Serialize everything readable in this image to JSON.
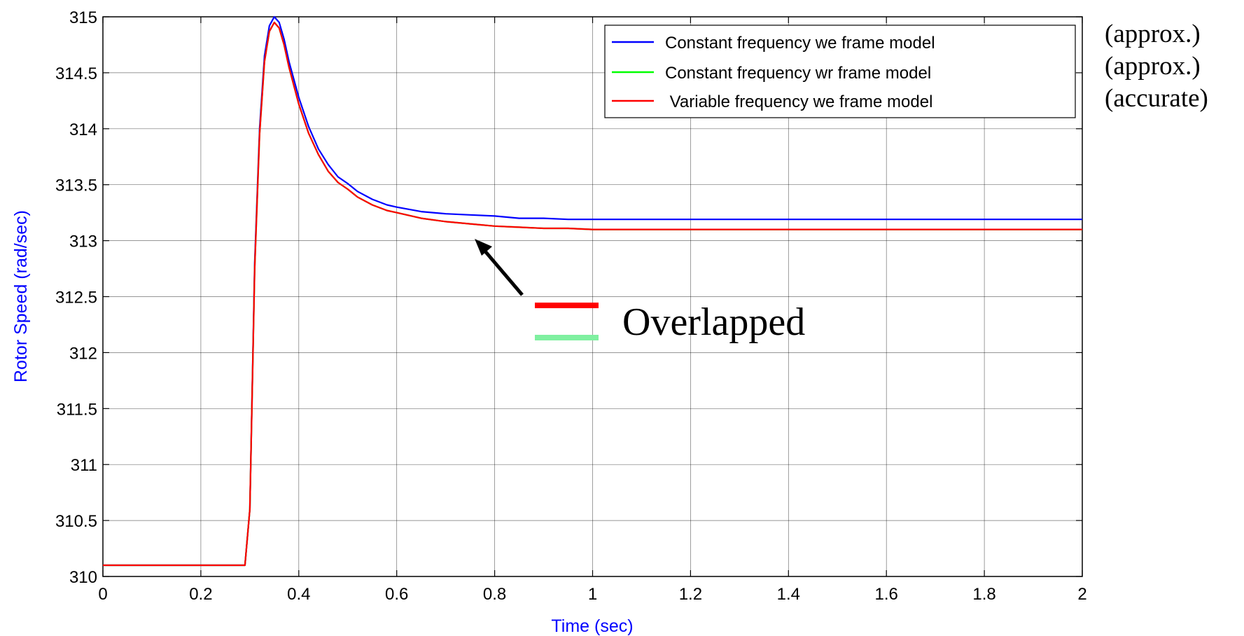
{
  "chart_data": {
    "type": "line",
    "title": "",
    "xlabel": "Time (sec)",
    "ylabel": "Rotor Speed (rad/sec)",
    "xlim": [
      0,
      2
    ],
    "ylim": [
      310,
      315
    ],
    "xticks": [
      0,
      0.2,
      0.4,
      0.6,
      0.8,
      1,
      1.2,
      1.4,
      1.6,
      1.8,
      2
    ],
    "xtick_labels": [
      "0",
      "0.2",
      "0.4",
      "0.6",
      "0.8",
      "1",
      "1.2",
      "1.4",
      "1.6",
      "1.8",
      "2"
    ],
    "yticks": [
      310,
      310.5,
      311,
      311.5,
      312,
      312.5,
      313,
      313.5,
      314,
      314.5,
      315
    ],
    "ytick_labels": [
      "310",
      "310.5",
      "311",
      "311.5",
      "312",
      "312.5",
      "313",
      "313.5",
      "314",
      "314.5",
      "315"
    ],
    "grid": true,
    "legend_position": "top-right",
    "series": [
      {
        "name": "Constant frequency we frame model",
        "color": "#0000ff",
        "x": [
          0,
          0.29,
          0.3,
          0.31,
          0.32,
          0.33,
          0.34,
          0.35,
          0.36,
          0.37,
          0.38,
          0.4,
          0.42,
          0.44,
          0.46,
          0.48,
          0.5,
          0.52,
          0.55,
          0.58,
          0.6,
          0.65,
          0.7,
          0.75,
          0.8,
          0.85,
          0.9,
          0.95,
          1.0,
          1.1,
          1.2,
          1.4,
          1.6,
          1.8,
          2.0
        ],
        "y": [
          310.1,
          310.1,
          310.6,
          312.8,
          314.0,
          314.65,
          314.92,
          315.0,
          314.95,
          314.8,
          314.6,
          314.28,
          314.02,
          313.82,
          313.68,
          313.57,
          313.51,
          313.44,
          313.37,
          313.32,
          313.3,
          313.26,
          313.24,
          313.23,
          313.22,
          313.2,
          313.2,
          313.19,
          313.19,
          313.19,
          313.19,
          313.19,
          313.19,
          313.19,
          313.19
        ]
      },
      {
        "name": "Constant frequency wr frame model",
        "color": "#00ff00",
        "x": [
          0,
          0.29,
          0.3,
          0.31,
          0.32,
          0.33,
          0.34,
          0.35,
          0.36,
          0.37,
          0.38,
          0.4,
          0.42,
          0.44,
          0.46,
          0.48,
          0.5,
          0.52,
          0.55,
          0.58,
          0.6,
          0.65,
          0.7,
          0.75,
          0.8,
          0.85,
          0.9,
          0.95,
          1.0,
          1.1,
          1.15,
          1.2,
          1.4,
          1.6,
          1.8,
          2.0
        ],
        "y": [
          310.1,
          310.1,
          310.6,
          312.75,
          313.95,
          314.6,
          314.87,
          314.95,
          314.9,
          314.75,
          314.55,
          314.22,
          313.96,
          313.77,
          313.62,
          313.52,
          313.46,
          313.39,
          313.32,
          313.27,
          313.25,
          313.2,
          313.17,
          313.15,
          313.13,
          313.12,
          313.11,
          313.11,
          313.1,
          313.1,
          313.1,
          313.1,
          313.1,
          313.1,
          313.1,
          313.1
        ]
      },
      {
        "name": " Variable frequency we frame model",
        "color": "#ff0000",
        "x": [
          0,
          0.29,
          0.3,
          0.31,
          0.32,
          0.33,
          0.34,
          0.35,
          0.36,
          0.37,
          0.38,
          0.4,
          0.42,
          0.44,
          0.46,
          0.48,
          0.5,
          0.52,
          0.55,
          0.58,
          0.6,
          0.65,
          0.7,
          0.75,
          0.8,
          0.85,
          0.9,
          0.95,
          1.0,
          1.1,
          1.15,
          1.2,
          1.4,
          1.6,
          1.8,
          2.0
        ],
        "y": [
          310.1,
          310.1,
          310.6,
          312.75,
          313.95,
          314.6,
          314.87,
          314.95,
          314.9,
          314.75,
          314.55,
          314.22,
          313.96,
          313.77,
          313.62,
          313.52,
          313.46,
          313.39,
          313.32,
          313.27,
          313.25,
          313.2,
          313.17,
          313.15,
          313.13,
          313.12,
          313.11,
          313.11,
          313.1,
          313.1,
          313.1,
          313.1,
          313.1,
          313.1,
          313.1,
          313.1
        ]
      }
    ],
    "annotations": {
      "side_notes": [
        "(approx.)",
        "(approx.)",
        "(accurate)"
      ],
      "overlap_label": "Overlapped",
      "overlap_colors": [
        "#ff0000",
        "#7ff0a0"
      ]
    }
  },
  "colors": {
    "axis_label": "#0000ff",
    "grid": "#000000",
    "background": "#ffffff",
    "arrow": "#000000"
  }
}
